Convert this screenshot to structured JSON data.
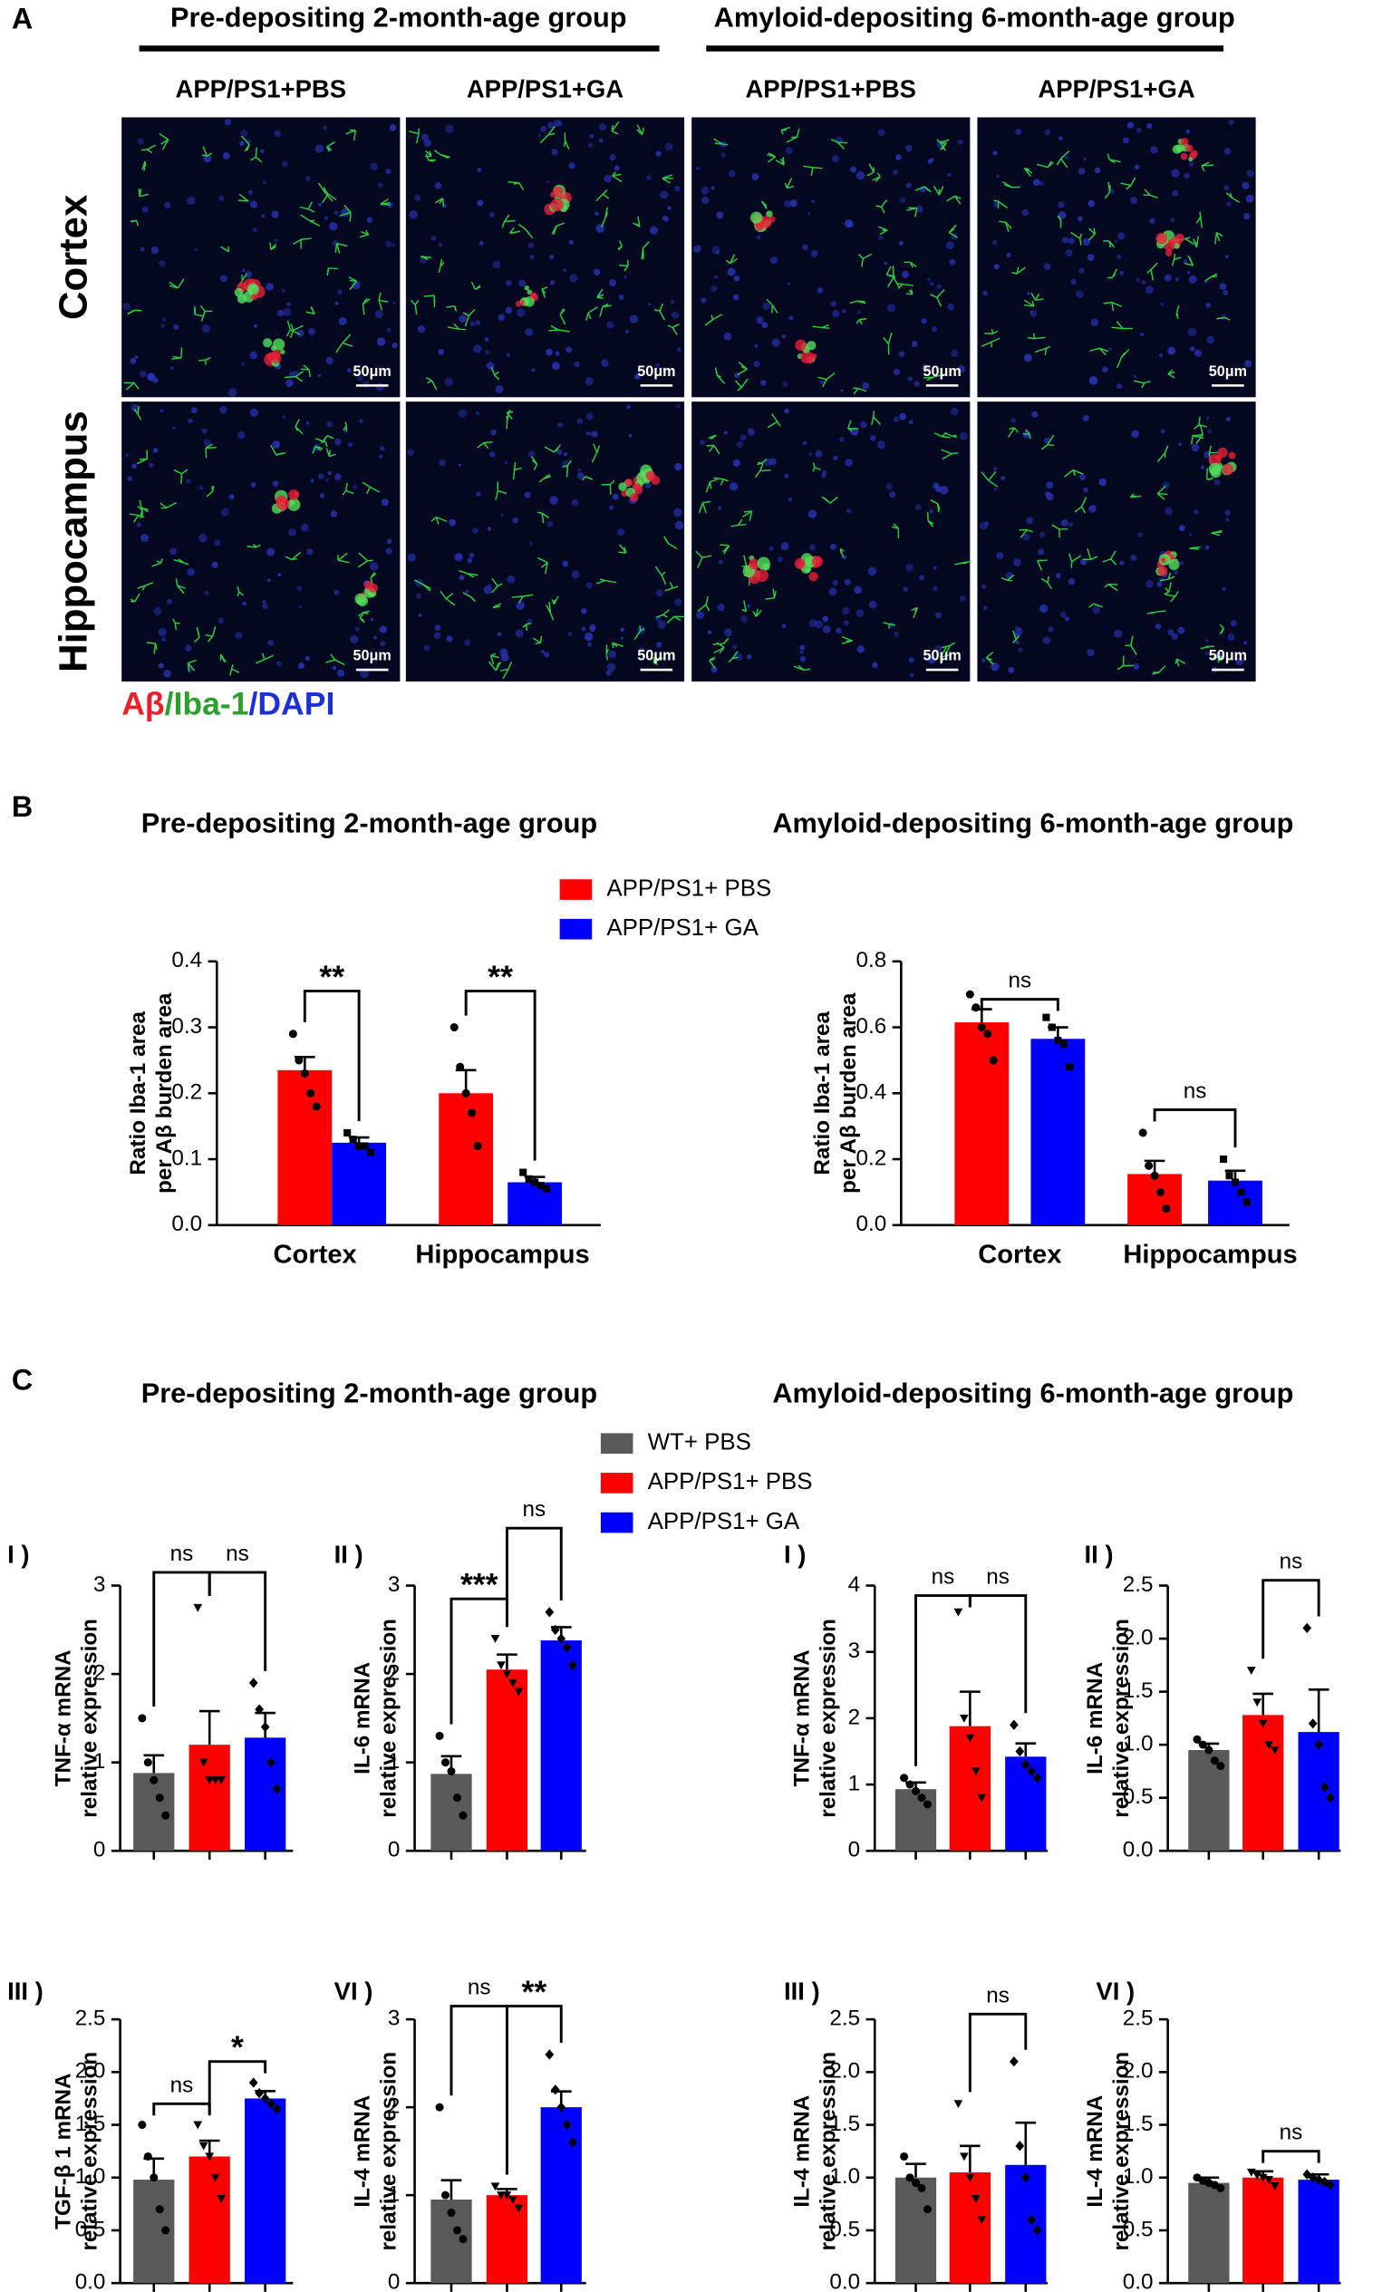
{
  "panel_a": {
    "label": "A",
    "headers": [
      "Pre-depositing 2-month-age group",
      "Amyloid-depositing 6-month-age group"
    ],
    "columns": [
      "APP/PS1+PBS",
      "APP/PS1+GA",
      "APP/PS1+PBS",
      "APP/PS1+GA"
    ],
    "rows": [
      "Cortex",
      "Hippocampus"
    ],
    "scale_bar": "50μm",
    "stain": [
      "Aβ",
      "/",
      "Iba-1",
      "/",
      "DAPI"
    ]
  },
  "panel_b": {
    "label": "B",
    "titles": [
      "Pre-depositing 2-month-age group",
      "Amyloid-depositing 6-month-age group"
    ]
  },
  "panel_c": {
    "label": "C",
    "titles": [
      "Pre-depositing 2-month-age group",
      "Amyloid-depositing 6-month-age group"
    ]
  },
  "chart_data": [
    {
      "type": "bar",
      "categories": [
        "Cortex",
        "Hippocampus"
      ],
      "ylabel": [
        "Ratio Iba-1 area",
        "per Aβ burden area"
      ],
      "ylim": [
        0,
        0.4
      ],
      "yticks": [
        {
          "value": 0,
          "label": "0.0"
        },
        0.1,
        0.2,
        0.3,
        0.4
      ],
      "series": [
        {
          "name": "APP/PS1+ PBS",
          "color": "#ff0000",
          "values": [
            0.235,
            0.2
          ],
          "errors": [
            0.02,
            0.035
          ],
          "points": [
            [
              0.29,
              0.25,
              0.23,
              0.2,
              0.18
            ],
            [
              0.3,
              0.24,
              0.2,
              0.17,
              0.12
            ]
          ]
        },
        {
          "name": "APP/PS1+ GA",
          "color": "#0000ff",
          "values": [
            0.125,
            0.065
          ],
          "errors": [
            0.008,
            0.008
          ],
          "points": [
            [
              0.14,
              0.13,
              0.12,
              0.12,
              0.11
            ],
            [
              0.08,
              0.07,
              0.065,
              0.06,
              0.055
            ]
          ]
        }
      ],
      "annotations": [
        {
          "text": "**",
          "bars": [
            0,
            1
          ],
          "y": 0.355
        },
        {
          "text": "**",
          "bars": [
            2,
            3
          ],
          "y": 0.355
        }
      ]
    },
    {
      "type": "bar",
      "categories": [
        "Cortex",
        "Hippocampus"
      ],
      "ylabel": [
        "Ratio Iba-1 area",
        "per Aβ burden area"
      ],
      "ylim": [
        0,
        0.8
      ],
      "yticks": [
        {
          "value": 0,
          "label": "0.0"
        },
        0.2,
        0.4,
        0.6,
        0.8
      ],
      "series": [
        {
          "name": "APP/PS1+ PBS",
          "color": "#ff0000",
          "values": [
            0.615,
            0.155
          ],
          "errors": [
            0.04,
            0.04
          ],
          "points": [
            [
              0.7,
              0.66,
              0.6,
              0.58,
              0.5
            ],
            [
              0.28,
              0.18,
              0.15,
              0.1,
              0.05
            ]
          ]
        },
        {
          "name": "APP/PS1+ GA",
          "color": "#0000ff",
          "values": [
            0.565,
            0.135
          ],
          "errors": [
            0.035,
            0.03
          ],
          "points": [
            [
              0.63,
              0.6,
              0.56,
              0.55,
              0.48
            ],
            [
              0.2,
              0.15,
              0.13,
              0.1,
              0.07
            ]
          ]
        }
      ],
      "annotations": [
        {
          "text": "ns",
          "bars": [
            0,
            1
          ],
          "y": 0.685
        },
        {
          "text": "ns",
          "bars": [
            2,
            3
          ],
          "y": 0.35
        }
      ]
    },
    {
      "type": "bar",
      "panel": "I )",
      "categories": [
        null
      ],
      "ylabel": [
        "TNF-α mRNA",
        "relative expression"
      ],
      "ylim": [
        0,
        3
      ],
      "yticks": [
        0,
        1,
        2,
        3
      ],
      "series": [
        {
          "name": "WT+ PBS",
          "color": "#595959",
          "values": [
            0.88
          ],
          "errors": [
            0.2
          ],
          "points": [
            [
              1.5,
              1.0,
              0.8,
              0.6,
              0.4
            ]
          ]
        },
        {
          "name": "APP/PS1+ PBS",
          "color": "#ff0000",
          "values": [
            1.2
          ],
          "errors": [
            0.38
          ],
          "points": [
            [
              2.75,
              1.0,
              0.8,
              0.8,
              0.8
            ]
          ]
        },
        {
          "name": "APP/PS1+ GA",
          "color": "#0000ff",
          "values": [
            1.28
          ],
          "errors": [
            0.28
          ],
          "points": [
            [
              1.9,
              1.6,
              1.4,
              1.0,
              0.7
            ]
          ]
        }
      ],
      "annotations": [
        {
          "text": "ns",
          "bars": [
            0,
            1
          ],
          "y": 3.15
        },
        {
          "text": "ns",
          "bars": [
            1,
            2
          ],
          "y": 3.15
        }
      ]
    },
    {
      "type": "bar",
      "panel": "II )",
      "categories": [
        null
      ],
      "ylabel": [
        "IL-6 mRNA",
        "relative expression"
      ],
      "ylim": [
        0,
        3
      ],
      "yticks": [
        0,
        1,
        2,
        3
      ],
      "series": [
        {
          "name": "WT+ PBS",
          "color": "#595959",
          "values": [
            0.87
          ],
          "errors": [
            0.2
          ],
          "points": [
            [
              1.3,
              1.0,
              0.9,
              0.6,
              0.4
            ]
          ]
        },
        {
          "name": "APP/PS1+ PBS",
          "color": "#ff0000",
          "values": [
            2.05
          ],
          "errors": [
            0.17
          ],
          "points": [
            [
              2.4,
              2.1,
              2.0,
              1.9,
              1.8
            ]
          ]
        },
        {
          "name": "APP/PS1+ GA",
          "color": "#0000ff",
          "values": [
            2.38
          ],
          "errors": [
            0.15
          ],
          "points": [
            [
              2.7,
              2.5,
              2.4,
              2.3,
              2.1
            ]
          ]
        }
      ],
      "annotations": [
        {
          "text": "***",
          "bars": [
            0,
            1
          ],
          "y": 2.85
        },
        {
          "text": "ns",
          "bars": [
            1,
            2
          ],
          "y": 3.65
        }
      ]
    },
    {
      "type": "bar",
      "panel": "I )",
      "categories": [
        null
      ],
      "ylabel": [
        "TNF-α mRNA",
        "relative expression"
      ],
      "ylim": [
        0,
        4
      ],
      "yticks": [
        0,
        1,
        2,
        3,
        4
      ],
      "series": [
        {
          "name": "WT+ PBS",
          "color": "#595959",
          "values": [
            0.93
          ],
          "errors": [
            0.1
          ],
          "points": [
            [
              1.1,
              1.0,
              0.9,
              0.8,
              0.7
            ]
          ]
        },
        {
          "name": "APP/PS1+ PBS",
          "color": "#ff0000",
          "values": [
            1.88
          ],
          "errors": [
            0.52
          ],
          "points": [
            [
              3.6,
              2.0,
              1.7,
              1.2,
              0.8
            ]
          ]
        },
        {
          "name": "APP/PS1+ GA",
          "color": "#0000ff",
          "values": [
            1.42
          ],
          "errors": [
            0.2
          ],
          "points": [
            [
              1.9,
              1.5,
              1.3,
              1.2,
              1.1
            ]
          ]
        }
      ],
      "annotations": [
        {
          "text": "ns",
          "bars": [
            0,
            1
          ],
          "y": 3.85
        },
        {
          "text": "ns",
          "bars": [
            1,
            2
          ],
          "y": 3.85
        }
      ]
    },
    {
      "type": "bar",
      "panel": "II )",
      "categories": [
        null
      ],
      "ylabel": [
        "IL-6 mRNA",
        "relative expression"
      ],
      "ylim": [
        0,
        2.5
      ],
      "yticks": [
        {
          "value": 0,
          "label": "0.0"
        },
        0.5,
        {
          "value": 1,
          "label": "1.0"
        },
        1.5,
        {
          "value": 2,
          "label": "2.0"
        },
        2.5
      ],
      "series": [
        {
          "name": "WT+ PBS",
          "color": "#595959",
          "values": [
            0.95
          ],
          "errors": [
            0.06
          ],
          "points": [
            [
              1.05,
              1.0,
              0.95,
              0.85,
              0.8
            ]
          ]
        },
        {
          "name": "APP/PS1+ PBS",
          "color": "#ff0000",
          "values": [
            1.28
          ],
          "errors": [
            0.2
          ],
          "points": [
            [
              1.7,
              1.4,
              1.2,
              1.0,
              0.95
            ]
          ]
        },
        {
          "name": "APP/PS1+ GA",
          "color": "#0000ff",
          "values": [
            1.12
          ],
          "errors": [
            0.4
          ],
          "points": [
            [
              2.1,
              1.2,
              1.0,
              0.6,
              0.5
            ]
          ]
        }
      ],
      "annotations": [
        {
          "text": "ns",
          "bars": [
            1,
            2
          ],
          "y": 2.55
        }
      ]
    },
    {
      "type": "bar",
      "panel": "III )",
      "categories": [
        null
      ],
      "ylabel": [
        "TGF-β 1 mRNA",
        "relative expression"
      ],
      "ylim": [
        0,
        2.5
      ],
      "yticks": [
        {
          "value": 0,
          "label": "0.0"
        },
        0.5,
        {
          "value": 1,
          "label": "1.0"
        },
        1.5,
        {
          "value": 2,
          "label": "2.0"
        },
        2.5
      ],
      "series": [
        {
          "name": "WT+ PBS",
          "color": "#595959",
          "values": [
            0.98
          ],
          "errors": [
            0.2
          ],
          "points": [
            [
              1.5,
              1.2,
              1.0,
              0.7,
              0.5
            ]
          ]
        },
        {
          "name": "APP/PS1+ PBS",
          "color": "#ff0000",
          "values": [
            1.2
          ],
          "errors": [
            0.15
          ],
          "points": [
            [
              1.5,
              1.3,
              1.2,
              1.0,
              0.8
            ]
          ]
        },
        {
          "name": "APP/PS1+ GA",
          "color": "#0000ff",
          "values": [
            1.75
          ],
          "errors": [
            0.07
          ],
          "points": [
            [
              1.9,
              1.8,
              1.75,
              1.7,
              1.65
            ]
          ]
        }
      ],
      "annotations": [
        {
          "text": "ns",
          "bars": [
            0,
            1
          ],
          "y": 1.7
        },
        {
          "text": "*",
          "bars": [
            1,
            2
          ],
          "y": 2.1
        }
      ]
    },
    {
      "type": "bar",
      "panel": "VI )",
      "categories": [
        null
      ],
      "ylabel": [
        "IL-4 mRNA",
        "relative expression"
      ],
      "ylim": [
        0,
        3
      ],
      "yticks": [
        0,
        1,
        2,
        3
      ],
      "series": [
        {
          "name": "WT+ PBS",
          "color": "#595959",
          "values": [
            0.95
          ],
          "errors": [
            0.22
          ],
          "points": [
            [
              2.0,
              1.0,
              0.8,
              0.6,
              0.5
            ]
          ]
        },
        {
          "name": "APP/PS1+ PBS",
          "color": "#ff0000",
          "values": [
            1.0
          ],
          "errors": [
            0.07
          ],
          "points": [
            [
              1.1,
              1.0,
              1.0,
              0.95,
              0.85
            ]
          ]
        },
        {
          "name": "APP/PS1+ GA",
          "color": "#0000ff",
          "values": [
            2.0
          ],
          "errors": [
            0.18
          ],
          "points": [
            [
              2.6,
              2.2,
              2.0,
              1.8,
              1.6
            ]
          ]
        }
      ],
      "annotations": [
        {
          "text": "ns",
          "bars": [
            0,
            1
          ],
          "y": 3.15
        },
        {
          "text": "**",
          "bars": [
            1,
            2
          ],
          "y": 3.15
        }
      ]
    },
    {
      "type": "bar",
      "panel": "III )",
      "categories": [
        null
      ],
      "ylabel": [
        "IL-4 mRNA",
        "relative expression"
      ],
      "ylim": [
        0,
        2.5
      ],
      "yticks": [
        {
          "value": 0,
          "label": "0.0"
        },
        0.5,
        {
          "value": 1,
          "label": "1.0"
        },
        1.5,
        {
          "value": 2,
          "label": "2.0"
        },
        2.5
      ],
      "series": [
        {
          "name": "WT+ PBS",
          "color": "#595959",
          "values": [
            1.0
          ],
          "errors": [
            0.13
          ],
          "points": [
            [
              1.2,
              1.0,
              0.95,
              0.9,
              0.7
            ]
          ]
        },
        {
          "name": "APP/PS1+ PBS",
          "color": "#ff0000",
          "values": [
            1.05
          ],
          "errors": [
            0.25
          ],
          "points": [
            [
              1.7,
              1.2,
              1.0,
              0.8,
              0.6
            ]
          ]
        },
        {
          "name": "APP/PS1+ GA",
          "color": "#0000ff",
          "values": [
            1.12
          ],
          "errors": [
            0.4
          ],
          "points": [
            [
              2.1,
              1.3,
              1.0,
              0.6,
              0.5
            ]
          ]
        }
      ],
      "annotations": [
        {
          "text": "ns",
          "bars": [
            1,
            2
          ],
          "y": 2.55
        }
      ]
    },
    {
      "type": "bar",
      "panel": "VI )",
      "categories": [
        null
      ],
      "ylabel": [
        "IL-4 mRNA",
        "relative expression"
      ],
      "ylim": [
        0,
        2.5
      ],
      "yticks": [
        {
          "value": 0,
          "label": "0.0"
        },
        0.5,
        {
          "value": 1,
          "label": "1.0"
        },
        1.5,
        {
          "value": 2,
          "label": "2.0"
        },
        2.5
      ],
      "series": [
        {
          "name": "WT+ PBS",
          "color": "#595959",
          "values": [
            0.95
          ],
          "errors": [
            0.05
          ],
          "points": [
            [
              1.0,
              0.97,
              0.95,
              0.93,
              0.9
            ]
          ]
        },
        {
          "name": "APP/PS1+ PBS",
          "color": "#ff0000",
          "values": [
            1.0
          ],
          "errors": [
            0.06
          ],
          "points": [
            [
              1.05,
              1.02,
              1.0,
              0.98,
              0.92
            ]
          ]
        },
        {
          "name": "APP/PS1+ GA",
          "color": "#0000ff",
          "values": [
            0.98
          ],
          "errors": [
            0.05
          ],
          "points": [
            [
              1.03,
              1.0,
              0.98,
              0.96,
              0.93
            ]
          ]
        }
      ],
      "annotations": [
        {
          "text": "ns",
          "bars": [
            1,
            2
          ],
          "y": 1.25
        }
      ]
    }
  ]
}
